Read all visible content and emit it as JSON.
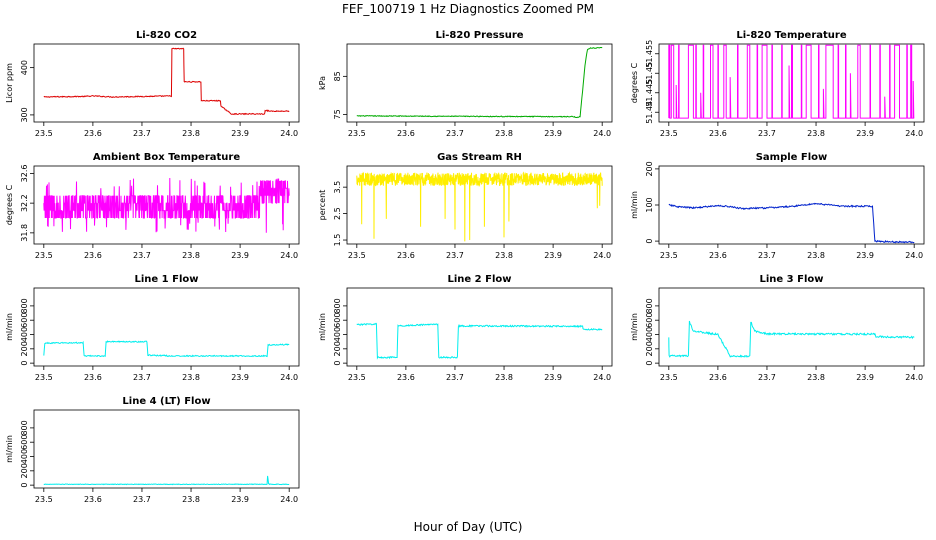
{
  "figure": {
    "title": "FEF_100719  1 Hz Diagnostics Zoomed PM",
    "xlabel": "Hour of Day (UTC)"
  },
  "chart_data": [
    {
      "id": "co2",
      "type": "line",
      "title": "Li-820 CO2",
      "ylabel": "Licor ppm",
      "color": "#dd0000",
      "xlim": [
        23.48,
        24.02
      ],
      "ylim": [
        285,
        450
      ],
      "xticks": [
        "23.5",
        "23.6",
        "23.7",
        "23.8",
        "23.9",
        "24.0"
      ],
      "yticks": [
        300,
        400
      ],
      "noise": 1,
      "x": [
        23.5,
        23.58,
        23.6,
        23.64,
        23.76,
        23.761,
        23.785,
        23.786,
        23.82,
        23.821,
        23.86,
        23.861,
        23.872,
        23.882,
        23.95,
        23.951,
        23.96,
        24.0
      ],
      "y": [
        338,
        339,
        340,
        338,
        340,
        440,
        440,
        370,
        370,
        330,
        330,
        318,
        310,
        302,
        302,
        310,
        308,
        308
      ]
    },
    {
      "id": "pressure",
      "type": "line",
      "title": "Li-820 Pressure",
      "ylabel": "kPa",
      "color": "#00aa00",
      "xlim": [
        23.48,
        24.02
      ],
      "ylim": [
        73,
        93.5
      ],
      "xticks": [
        "23.5",
        "23.6",
        "23.7",
        "23.8",
        "23.9",
        "24.0"
      ],
      "yticks": [
        75,
        85
      ],
      "noise": 0.1,
      "x": [
        23.5,
        23.7,
        23.94,
        23.95,
        23.955,
        23.965,
        23.97,
        23.975,
        24.0
      ],
      "y": [
        74.6,
        74.5,
        74.4,
        74.2,
        74.4,
        88,
        92,
        92.4,
        92.5
      ]
    },
    {
      "id": "temperature",
      "type": "spikes",
      "title": "Li-820 Temperature",
      "ylabel": "degrees C",
      "color": "#ff00ff",
      "xlim": [
        23.48,
        24.02
      ],
      "ylim": [
        51.4375,
        51.4575
      ],
      "xticks": [
        "23.5",
        "23.6",
        "23.7",
        "23.8",
        "23.9",
        "24.0"
      ],
      "yticks": [
        51.44,
        51.445,
        51.45,
        51.455
      ],
      "baseline": 51.4385,
      "top": 51.4572,
      "segments": [
        [
          23.5,
          23.502
        ],
        [
          23.505,
          23.51
        ],
        [
          23.52,
          23.521
        ],
        [
          23.54,
          23.55
        ],
        [
          23.555,
          23.556
        ],
        [
          23.57,
          23.571
        ],
        [
          23.585,
          23.59
        ],
        [
          23.6,
          23.601
        ],
        [
          23.612,
          23.617
        ],
        [
          23.64,
          23.641
        ],
        [
          23.66,
          23.665
        ],
        [
          23.68,
          23.681
        ],
        [
          23.69,
          23.7
        ],
        [
          23.71,
          23.711
        ],
        [
          23.73,
          23.731
        ],
        [
          23.75,
          23.752
        ],
        [
          23.77,
          23.771
        ],
        [
          23.78,
          23.79
        ],
        [
          23.805,
          23.806
        ],
        [
          23.82,
          23.835
        ],
        [
          23.845,
          23.846
        ],
        [
          23.86,
          23.861
        ],
        [
          23.885,
          23.89
        ],
        [
          23.91,
          23.911
        ],
        [
          23.93,
          23.931
        ],
        [
          23.95,
          23.951
        ],
        [
          23.96,
          23.97
        ],
        [
          23.985,
          23.986
        ],
        [
          23.993,
          23.995
        ]
      ],
      "partial": [
        [
          23.515,
          51.447
        ],
        [
          23.565,
          51.445
        ],
        [
          23.625,
          51.449
        ],
        [
          23.745,
          51.452
        ],
        [
          23.815,
          51.446
        ],
        [
          23.87,
          51.45
        ],
        [
          23.94,
          51.444
        ],
        [
          23.998,
          51.448
        ]
      ]
    },
    {
      "id": "box_temp",
      "type": "noise",
      "title": "Ambient Box Temperature",
      "ylabel": "degrees C",
      "color": "#ff00ff",
      "xlim": [
        23.48,
        24.02
      ],
      "ylim": [
        31.65,
        32.7
      ],
      "xticks": [
        "23.5",
        "23.6",
        "23.7",
        "23.8",
        "23.9",
        "24.0"
      ],
      "yticks": [
        31.8,
        32.2,
        32.6
      ],
      "levels": [
        32.0,
        32.1,
        32.2,
        32.3
      ],
      "x_range": [
        23.5,
        24.0
      ],
      "end_levels": [
        32.2,
        32.3,
        32.4,
        32.5
      ]
    },
    {
      "id": "rh",
      "type": "rh",
      "title": "Gas Stream RH",
      "ylabel": "percent",
      "color": "#ffee00",
      "xlim": [
        23.48,
        24.02
      ],
      "ylim": [
        1.35,
        4.3
      ],
      "xticks": [
        "23.5",
        "23.6",
        "23.7",
        "23.8",
        "23.9",
        "24.0"
      ],
      "yticks": [
        1.5,
        2.5,
        3.5
      ],
      "band": [
        3.55,
        4.05
      ],
      "x_range": [
        23.5,
        24.0
      ],
      "dips": [
        [
          23.51,
          2.1
        ],
        [
          23.535,
          1.55
        ],
        [
          23.56,
          2.3
        ],
        [
          23.63,
          2.0
        ],
        [
          23.68,
          2.3
        ],
        [
          23.7,
          1.9
        ],
        [
          23.72,
          1.45
        ],
        [
          23.73,
          1.5
        ],
        [
          23.76,
          2.0
        ],
        [
          23.8,
          1.6
        ],
        [
          23.81,
          2.2
        ],
        [
          23.99,
          2.7
        ],
        [
          23.995,
          2.8
        ]
      ]
    },
    {
      "id": "sample_flow",
      "type": "line",
      "title": "Sample Flow",
      "ylabel": "ml/min",
      "color": "#0022cc",
      "xlim": [
        23.48,
        24.02
      ],
      "ylim": [
        -8,
        208
      ],
      "xticks": [
        "23.5",
        "23.6",
        "23.7",
        "23.8",
        "23.9",
        "24.0"
      ],
      "yticks": [
        0,
        100,
        200
      ],
      "noise": 2,
      "x": [
        23.5,
        23.52,
        23.55,
        23.6,
        23.62,
        23.65,
        23.7,
        23.75,
        23.8,
        23.83,
        23.85,
        23.915,
        23.92,
        23.95,
        24.0
      ],
      "y": [
        100,
        95,
        92,
        98,
        96,
        90,
        92,
        96,
        104,
        100,
        97,
        96,
        0,
        -2,
        -3
      ]
    },
    {
      "id": "line1",
      "type": "line",
      "title": "Line 1 Flow",
      "ylabel": "ml/min",
      "color": "#00eeee",
      "xlim": [
        23.48,
        24.02
      ],
      "ylim": [
        -40,
        1050
      ],
      "xticks": [
        "23.5",
        "23.6",
        "23.7",
        "23.8",
        "23.9",
        "24.0"
      ],
      "yticks": [
        0,
        200,
        400,
        600,
        800
      ],
      "noise": 8,
      "x": [
        23.5,
        23.502,
        23.58,
        23.582,
        23.625,
        23.627,
        23.71,
        23.712,
        23.75,
        23.752,
        23.955,
        23.957,
        24.0
      ],
      "y": [
        100,
        280,
        285,
        100,
        100,
        300,
        300,
        110,
        105,
        100,
        100,
        255,
        260
      ]
    },
    {
      "id": "line2",
      "type": "line",
      "title": "Line 2 Flow",
      "ylabel": "ml/min",
      "color": "#00eeee",
      "xlim": [
        23.48,
        24.02
      ],
      "ylim": [
        -40,
        1050
      ],
      "xticks": [
        "23.5",
        "23.6",
        "23.7",
        "23.8",
        "23.9",
        "24.0"
      ],
      "yticks": [
        0,
        200,
        400,
        600,
        800
      ],
      "noise": 10,
      "x": [
        23.5,
        23.54,
        23.542,
        23.582,
        23.584,
        23.665,
        23.667,
        23.705,
        23.707,
        23.96,
        23.962,
        24.0
      ],
      "y": [
        540,
        545,
        80,
        80,
        520,
        545,
        80,
        80,
        520,
        515,
        470,
        470
      ]
    },
    {
      "id": "line3",
      "type": "line",
      "title": "Line 3 Flow",
      "ylabel": "ml/min",
      "color": "#00eeee",
      "xlim": [
        23.48,
        24.02
      ],
      "ylim": [
        -40,
        1050
      ],
      "xticks": [
        "23.5",
        "23.6",
        "23.7",
        "23.8",
        "23.9",
        "24.0"
      ],
      "yticks": [
        0,
        200,
        400,
        600,
        800
      ],
      "noise": 12,
      "x": [
        23.5,
        23.5005,
        23.502,
        23.54,
        23.542,
        23.55,
        23.58,
        23.6,
        23.625,
        23.627,
        23.665,
        23.667,
        23.675,
        23.7,
        23.92,
        23.922,
        24.0
      ],
      "y": [
        350,
        100,
        100,
        100,
        580,
        450,
        420,
        400,
        100,
        100,
        95,
        580,
        450,
        410,
        405,
        370,
        360
      ]
    },
    {
      "id": "line4",
      "type": "line",
      "title": "Line 4 (LT) Flow",
      "ylabel": "ml/min",
      "color": "#00eeee",
      "xlim": [
        23.48,
        24.02
      ],
      "ylim": [
        -40,
        1050
      ],
      "xticks": [
        "23.5",
        "23.6",
        "23.7",
        "23.8",
        "23.9",
        "24.0"
      ],
      "yticks": [
        0,
        200,
        400,
        600,
        800
      ],
      "noise": 4,
      "x": [
        23.5,
        23.955,
        23.956,
        23.958,
        23.96,
        24.0
      ],
      "y": [
        12,
        12,
        130,
        20,
        12,
        12
      ]
    }
  ]
}
